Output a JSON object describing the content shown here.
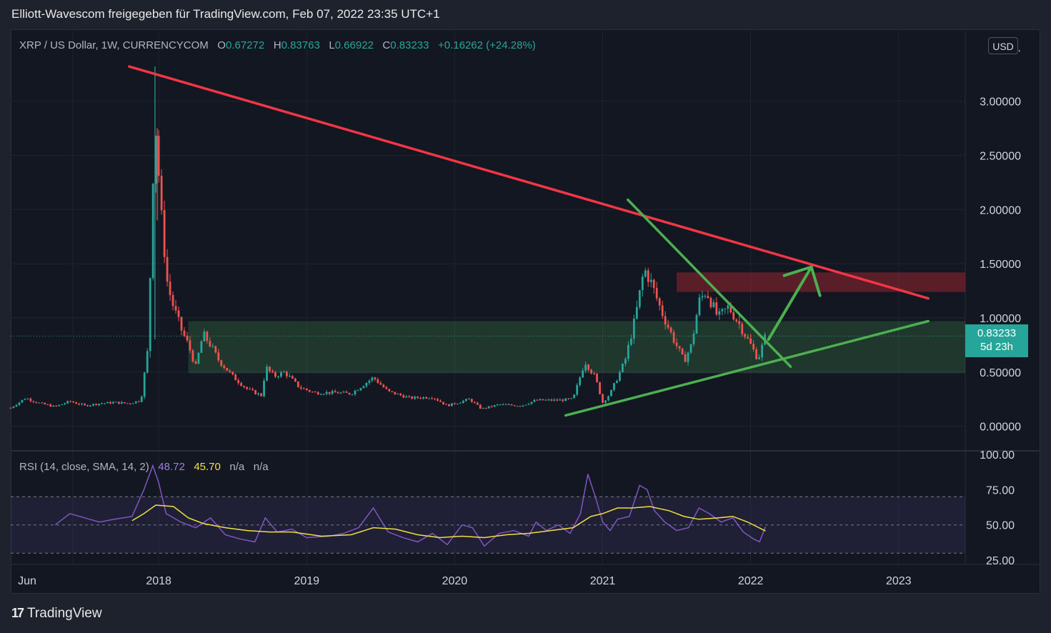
{
  "header": {
    "title": "Elliott-Wavescom freigegeben für TradingView.com, Feb 07, 2022 23:35 UTC+1"
  },
  "legend": {
    "symbol": "XRP / US Dollar, 1W, CURRENCYCOM",
    "o_label": "O",
    "o_value": "0.67272",
    "h_label": "H",
    "h_value": "0.83763",
    "l_label": "L",
    "l_value": "0.66922",
    "c_label": "C",
    "c_value": "0.83233",
    "change": "+0.16262 (+24.28%)"
  },
  "rsi_legend": {
    "label": "RSI (14, close, SMA, 14, 2)",
    "rsi_value": "48.72",
    "sma_value": "45.70",
    "na1": "n/a",
    "na2": "n/a"
  },
  "currency_button": "USD",
  "price_tag": {
    "price": "0.83233",
    "countdown": "5d 23h"
  },
  "footer": {
    "logo": "17",
    "brand": "TradingView"
  },
  "colors": {
    "up": "#26a69a",
    "down": "#ef5350",
    "resistance_line": "#f23645",
    "support_line": "#4caf50",
    "rsi_line": "#7e57c2",
    "rsi_sma": "#f0e040",
    "background": "#131722"
  },
  "chart_data": [
    {
      "type": "candlestick",
      "title": "XRP / US Dollar, 1W, CURRENCYCOM",
      "price_axis_labels": [
        "3.",
        "3.00000",
        "2.50000",
        "2.00000",
        "1.50000",
        "1.00000",
        "0.50000",
        "0.00000"
      ],
      "price_axis_values": [
        3.5,
        3.0,
        2.5,
        2.0,
        1.5,
        1.0,
        0.5,
        0.0
      ],
      "time_axis_labels": [
        "Jun",
        "2018",
        "2019",
        "2020",
        "2021",
        "2022",
        "2023"
      ],
      "time_axis_values": [
        2017.42,
        2018.0,
        2019.0,
        2020.0,
        2021.0,
        2022.0,
        2023.0
      ],
      "last_price": 0.83233,
      "ylim": [
        -0.22,
        3.65
      ],
      "xlim": [
        2017.0,
        2023.45
      ],
      "grid": true,
      "close_series": [
        {
          "t": 2017.0,
          "c": 0.17
        },
        {
          "t": 2017.1,
          "c": 0.26
        },
        {
          "t": 2017.2,
          "c": 0.21
        },
        {
          "t": 2017.3,
          "c": 0.18
        },
        {
          "t": 2017.4,
          "c": 0.23
        },
        {
          "t": 2017.5,
          "c": 0.19
        },
        {
          "t": 2017.6,
          "c": 0.21
        },
        {
          "t": 2017.7,
          "c": 0.22
        },
        {
          "t": 2017.8,
          "c": 0.21
        },
        {
          "t": 2017.88,
          "c": 0.24
        },
        {
          "t": 2017.93,
          "c": 0.75
        },
        {
          "t": 2017.96,
          "c": 2.3
        },
        {
          "t": 2017.98,
          "c": 2.75
        },
        {
          "t": 2018.02,
          "c": 1.9
        },
        {
          "t": 2018.06,
          "c": 1.3
        },
        {
          "t": 2018.1,
          "c": 1.1
        },
        {
          "t": 2018.15,
          "c": 0.9
        },
        {
          "t": 2018.2,
          "c": 0.75
        },
        {
          "t": 2018.25,
          "c": 0.55
        },
        {
          "t": 2018.3,
          "c": 0.85
        },
        {
          "t": 2018.35,
          "c": 0.75
        },
        {
          "t": 2018.4,
          "c": 0.62
        },
        {
          "t": 2018.5,
          "c": 0.46
        },
        {
          "t": 2018.6,
          "c": 0.34
        },
        {
          "t": 2018.7,
          "c": 0.28
        },
        {
          "t": 2018.72,
          "c": 0.55
        },
        {
          "t": 2018.78,
          "c": 0.46
        },
        {
          "t": 2018.85,
          "c": 0.5
        },
        {
          "t": 2018.95,
          "c": 0.36
        },
        {
          "t": 2019.05,
          "c": 0.31
        },
        {
          "t": 2019.2,
          "c": 0.31
        },
        {
          "t": 2019.3,
          "c": 0.3
        },
        {
          "t": 2019.45,
          "c": 0.45
        },
        {
          "t": 2019.55,
          "c": 0.32
        },
        {
          "t": 2019.7,
          "c": 0.26
        },
        {
          "t": 2019.85,
          "c": 0.27
        },
        {
          "t": 2019.95,
          "c": 0.19
        },
        {
          "t": 2020.1,
          "c": 0.25
        },
        {
          "t": 2020.18,
          "c": 0.16
        },
        {
          "t": 2020.3,
          "c": 0.2
        },
        {
          "t": 2020.45,
          "c": 0.19
        },
        {
          "t": 2020.55,
          "c": 0.24
        },
        {
          "t": 2020.7,
          "c": 0.24
        },
        {
          "t": 2020.8,
          "c": 0.25
        },
        {
          "t": 2020.88,
          "c": 0.6
        },
        {
          "t": 2020.95,
          "c": 0.45
        },
        {
          "t": 2021.0,
          "c": 0.22
        },
        {
          "t": 2021.05,
          "c": 0.3
        },
        {
          "t": 2021.1,
          "c": 0.45
        },
        {
          "t": 2021.15,
          "c": 0.6
        },
        {
          "t": 2021.22,
          "c": 1.0
        },
        {
          "t": 2021.28,
          "c": 1.45
        },
        {
          "t": 2021.32,
          "c": 1.35
        },
        {
          "t": 2021.4,
          "c": 1.05
        },
        {
          "t": 2021.48,
          "c": 0.8
        },
        {
          "t": 2021.55,
          "c": 0.6
        },
        {
          "t": 2021.6,
          "c": 0.75
        },
        {
          "t": 2021.65,
          "c": 1.15
        },
        {
          "t": 2021.7,
          "c": 1.25
        },
        {
          "t": 2021.78,
          "c": 1.0
        },
        {
          "t": 2021.85,
          "c": 1.1
        },
        {
          "t": 2021.92,
          "c": 0.95
        },
        {
          "t": 2022.0,
          "c": 0.75
        },
        {
          "t": 2022.05,
          "c": 0.62
        },
        {
          "t": 2022.1,
          "c": 0.83233
        }
      ],
      "annotations": {
        "resistance_line": {
          "from": [
            2017.8,
            3.32
          ],
          "to": [
            2023.2,
            1.18
          ]
        },
        "support_line": {
          "from": [
            2020.75,
            0.1
          ],
          "to": [
            2023.2,
            0.97
          ]
        },
        "descending_wedge_line": {
          "from": [
            2021.17,
            2.09
          ],
          "to": [
            2022.27,
            0.55
          ]
        },
        "projection_arrow": {
          "from": [
            2022.12,
            0.8
          ],
          "to": [
            2022.41,
            1.47
          ]
        },
        "support_zone": {
          "x0": 2018.2,
          "x1": 2023.45,
          "y0": 0.49,
          "y1": 0.97
        },
        "resistance_zone": {
          "x0": 2021.5,
          "x1": 2023.45,
          "y0": 1.24,
          "y1": 1.42
        }
      }
    },
    {
      "type": "line",
      "title": "RSI (14, close, SMA, 14, 2)",
      "axis_labels": [
        "100.00",
        "75.00",
        "50.00",
        "25.00"
      ],
      "axis_values": [
        100,
        75,
        50,
        25
      ],
      "ylim": [
        22,
        102
      ],
      "bands": {
        "upper": 70,
        "middle": 50,
        "lower": 30
      },
      "series": [
        {
          "name": "RSI",
          "values": [
            {
              "t": 2017.3,
              "v": 50
            },
            {
              "t": 2017.4,
              "v": 58
            },
            {
              "t": 2017.5,
              "v": 55
            },
            {
              "t": 2017.6,
              "v": 52
            },
            {
              "t": 2017.7,
              "v": 54
            },
            {
              "t": 2017.82,
              "v": 56
            },
            {
              "t": 2017.9,
              "v": 75
            },
            {
              "t": 2017.96,
              "v": 92
            },
            {
              "t": 2018.0,
              "v": 80
            },
            {
              "t": 2018.05,
              "v": 58
            },
            {
              "t": 2018.15,
              "v": 52
            },
            {
              "t": 2018.25,
              "v": 48
            },
            {
              "t": 2018.35,
              "v": 55
            },
            {
              "t": 2018.45,
              "v": 43
            },
            {
              "t": 2018.55,
              "v": 40
            },
            {
              "t": 2018.65,
              "v": 38
            },
            {
              "t": 2018.72,
              "v": 55
            },
            {
              "t": 2018.8,
              "v": 45
            },
            {
              "t": 2018.9,
              "v": 47
            },
            {
              "t": 2019.0,
              "v": 41
            },
            {
              "t": 2019.15,
              "v": 42
            },
            {
              "t": 2019.25,
              "v": 44
            },
            {
              "t": 2019.35,
              "v": 48
            },
            {
              "t": 2019.45,
              "v": 62
            },
            {
              "t": 2019.55,
              "v": 45
            },
            {
              "t": 2019.65,
              "v": 41
            },
            {
              "t": 2019.75,
              "v": 38
            },
            {
              "t": 2019.85,
              "v": 44
            },
            {
              "t": 2019.95,
              "v": 36
            },
            {
              "t": 2020.05,
              "v": 50
            },
            {
              "t": 2020.12,
              "v": 48
            },
            {
              "t": 2020.2,
              "v": 35
            },
            {
              "t": 2020.3,
              "v": 44
            },
            {
              "t": 2020.4,
              "v": 46
            },
            {
              "t": 2020.5,
              "v": 42
            },
            {
              "t": 2020.55,
              "v": 52
            },
            {
              "t": 2020.62,
              "v": 46
            },
            {
              "t": 2020.7,
              "v": 50
            },
            {
              "t": 2020.78,
              "v": 44
            },
            {
              "t": 2020.85,
              "v": 58
            },
            {
              "t": 2020.9,
              "v": 86
            },
            {
              "t": 2020.95,
              "v": 70
            },
            {
              "t": 2021.0,
              "v": 52
            },
            {
              "t": 2021.05,
              "v": 46
            },
            {
              "t": 2021.1,
              "v": 54
            },
            {
              "t": 2021.18,
              "v": 56
            },
            {
              "t": 2021.25,
              "v": 78
            },
            {
              "t": 2021.3,
              "v": 75
            },
            {
              "t": 2021.35,
              "v": 60
            },
            {
              "t": 2021.42,
              "v": 52
            },
            {
              "t": 2021.5,
              "v": 46
            },
            {
              "t": 2021.58,
              "v": 48
            },
            {
              "t": 2021.65,
              "v": 62
            },
            {
              "t": 2021.72,
              "v": 58
            },
            {
              "t": 2021.8,
              "v": 52
            },
            {
              "t": 2021.88,
              "v": 55
            },
            {
              "t": 2021.95,
              "v": 45
            },
            {
              "t": 2022.02,
              "v": 40
            },
            {
              "t": 2022.06,
              "v": 38
            },
            {
              "t": 2022.1,
              "v": 48.72
            }
          ]
        },
        {
          "name": "SMA",
          "values": [
            {
              "t": 2017.82,
              "v": 53
            },
            {
              "t": 2017.9,
              "v": 58
            },
            {
              "t": 2017.98,
              "v": 64
            },
            {
              "t": 2018.1,
              "v": 63
            },
            {
              "t": 2018.2,
              "v": 55
            },
            {
              "t": 2018.3,
              "v": 51
            },
            {
              "t": 2018.45,
              "v": 48
            },
            {
              "t": 2018.6,
              "v": 46
            },
            {
              "t": 2018.75,
              "v": 45
            },
            {
              "t": 2018.9,
              "v": 45
            },
            {
              "t": 2019.1,
              "v": 42
            },
            {
              "t": 2019.3,
              "v": 43
            },
            {
              "t": 2019.45,
              "v": 48
            },
            {
              "t": 2019.6,
              "v": 47
            },
            {
              "t": 2019.75,
              "v": 43
            },
            {
              "t": 2019.9,
              "v": 41
            },
            {
              "t": 2020.05,
              "v": 42
            },
            {
              "t": 2020.2,
              "v": 41
            },
            {
              "t": 2020.35,
              "v": 43
            },
            {
              "t": 2020.5,
              "v": 44
            },
            {
              "t": 2020.65,
              "v": 46
            },
            {
              "t": 2020.8,
              "v": 48
            },
            {
              "t": 2020.92,
              "v": 56
            },
            {
              "t": 2021.0,
              "v": 58
            },
            {
              "t": 2021.1,
              "v": 62
            },
            {
              "t": 2021.2,
              "v": 62
            },
            {
              "t": 2021.32,
              "v": 63
            },
            {
              "t": 2021.45,
              "v": 60
            },
            {
              "t": 2021.55,
              "v": 56
            },
            {
              "t": 2021.65,
              "v": 54
            },
            {
              "t": 2021.78,
              "v": 55
            },
            {
              "t": 2021.88,
              "v": 56
            },
            {
              "t": 2021.98,
              "v": 52
            },
            {
              "t": 2022.1,
              "v": 45.7
            }
          ]
        }
      ]
    }
  ]
}
